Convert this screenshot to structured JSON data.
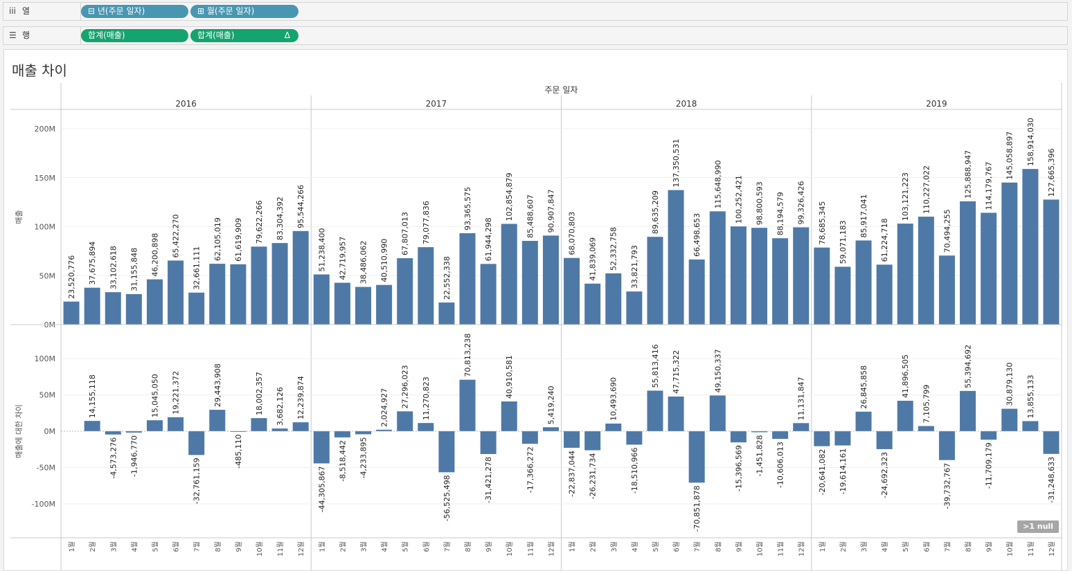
{
  "shelves": {
    "columns": {
      "label": "열",
      "icon": "columns-icon",
      "pills": [
        "⊟ 년(주문 일자)",
        "⊞ 월(주문 일자)"
      ]
    },
    "rows": {
      "label": "행",
      "icon": "rows-icon",
      "pills": [
        "합계(매출)",
        "합계(매출)"
      ],
      "delta": "Δ"
    }
  },
  "sheet": {
    "title": "매출 차이",
    "null_badge": ">1 null"
  },
  "colors": {
    "bar": "#4e79a7",
    "column_pill": "#4996b2",
    "row_pill": "#15a36f"
  },
  "chart_data": {
    "type": "bar",
    "header_title": "주문 일자",
    "years": [
      "2016",
      "2017",
      "2018",
      "2019"
    ],
    "months": [
      "1월",
      "2월",
      "3월",
      "4월",
      "5월",
      "6월",
      "7월",
      "8월",
      "9월",
      "10월",
      "11월",
      "12월"
    ],
    "panes": [
      {
        "name": "sales",
        "ylabel": "매출",
        "ticks": [
          "0M",
          "50M",
          "100M",
          "150M",
          "200M"
        ],
        "tick_values": [
          0,
          50000000,
          100000000,
          150000000,
          200000000
        ],
        "ylim": [
          0,
          200000000
        ],
        "values": [
          23520776,
          37675894,
          33102618,
          31155848,
          46200898,
          65422270,
          32661111,
          62105019,
          61619909,
          79622266,
          83304392,
          95544266,
          51238400,
          42719957,
          38486062,
          40510990,
          67807013,
          79077836,
          22552338,
          93365575,
          61944298,
          102854879,
          85488607,
          90907847,
          68070803,
          41839069,
          52332758,
          33821793,
          89635209,
          137350531,
          66498653,
          115648990,
          100252421,
          98800593,
          88194579,
          99326426,
          78685345,
          59071183,
          85917041,
          61224718,
          103121223,
          110227022,
          70494255,
          125888947,
          114179767,
          145058897,
          158914030,
          127665396
        ],
        "labels": [
          "23,520,776",
          "37,675,894",
          "33,102,618",
          "31,155,848",
          "46,200,898",
          "65,422,270",
          "32,661,111",
          "62,105,019",
          "61,619,909",
          "79,622,266",
          "83,304,392",
          "95,544,266",
          "51,238,400",
          "42,719,957",
          "38,486,062",
          "40,510,990",
          "67,807,013",
          "79,077,836",
          "22,552,338",
          "93,365,575",
          "61,944,298",
          "102,854,879",
          "85,488,607",
          "90,907,847",
          "68,070,803",
          "41,839,069",
          "52,332,758",
          "33,821,793",
          "89,635,209",
          "137,350,531",
          "66,498,653",
          "115,648,990",
          "100,252,421",
          "98,800,593",
          "88,194,579",
          "99,326,426",
          "78,685,345",
          "59,071,183",
          "85,917,041",
          "61,224,718",
          "103,121,223",
          "110,227,022",
          "70,494,255",
          "125,888,947",
          "114,179,767",
          "145,058,897",
          "158,914,030",
          "127,665,396"
        ]
      },
      {
        "name": "difference",
        "ylabel": "매출에 대한 차이",
        "ticks": [
          "-100M",
          "-50M",
          "0M",
          "50M",
          "100M"
        ],
        "tick_values": [
          -100000000,
          -50000000,
          0,
          50000000,
          100000000
        ],
        "ylim": [
          -100000000,
          100000000
        ],
        "values": [
          null,
          14155118,
          -4573276,
          -1946770,
          15045050,
          19221372,
          -32761159,
          29443908,
          -485110,
          18002357,
          3682126,
          12239874,
          -44305867,
          -8518442,
          -4233895,
          2024927,
          27296023,
          11270823,
          -56525498,
          70813238,
          -31421278,
          40910581,
          -17366272,
          5419240,
          -22837044,
          -26231734,
          10493690,
          -18510966,
          55813416,
          47715322,
          -70851878,
          49150337,
          -15396569,
          -1451828,
          -10606013,
          11131847,
          -20641082,
          -19614161,
          26845858,
          -24692323,
          41896505,
          7105799,
          -39732767,
          55394692,
          -11709179,
          30879130,
          13855133,
          -31248633
        ],
        "labels": [
          "",
          "14,155,118",
          "-4,573,276",
          "-1,946,770",
          "15,045,050",
          "19,221,372",
          "-32,761,159",
          "29,443,908",
          "-485,110",
          "18,002,357",
          "3,682,126",
          "12,239,874",
          "-44,305,867",
          "-8,518,442",
          "-4,233,895",
          "2,024,927",
          "27,296,023",
          "11,270,823",
          "-56,525,498",
          "70,813,238",
          "-31,421,278",
          "40,910,581",
          "-17,366,272",
          "5,419,240",
          "-22,837,044",
          "-26,231,734",
          "10,493,690",
          "-18,510,966",
          "55,813,416",
          "47,715,322",
          "-70,851,878",
          "49,150,337",
          "-15,396,569",
          "-1,451,828",
          "-10,606,013",
          "11,131,847",
          "-20,641,082",
          "-19,614,161",
          "26,845,858",
          "-24,692,323",
          "41,896,505",
          "7,105,799",
          "-39,732,767",
          "55,394,692",
          "-11,709,179",
          "30,879,130",
          "13,855,133",
          "-31,248,633"
        ]
      }
    ]
  }
}
